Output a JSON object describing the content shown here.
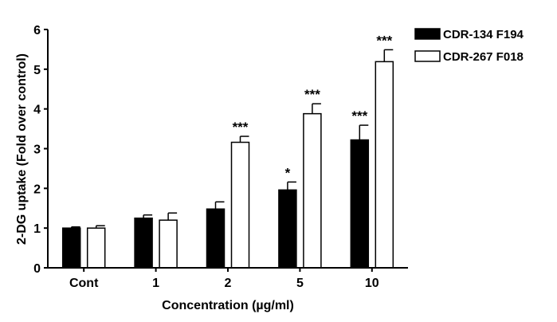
{
  "chart_data": {
    "type": "bar",
    "title": "",
    "xlabel": "Concentration (µg/ml)",
    "ylabel": "2-DG uptake (Fold over control)",
    "ylim": [
      0,
      6
    ],
    "yticks": [
      "0",
      "1",
      "2",
      "3",
      "4",
      "5",
      "6"
    ],
    "categories": [
      "Cont",
      "1",
      "2",
      "5",
      "10"
    ],
    "legend_position": "top-right",
    "series": [
      {
        "name": "CDR-134 F194",
        "fill": "#000000",
        "values": [
          1.0,
          1.25,
          1.48,
          1.96,
          3.22
        ],
        "errors": [
          0.03,
          0.08,
          0.18,
          0.2,
          0.37
        ],
        "significance": [
          "",
          "",
          "",
          "*",
          "***"
        ]
      },
      {
        "name": "CDR-267 F018",
        "fill": "#ffffff",
        "values": [
          1.0,
          1.2,
          3.16,
          3.88,
          5.19
        ],
        "errors": [
          0.06,
          0.18,
          0.15,
          0.25,
          0.3
        ],
        "significance": [
          "",
          "",
          "***",
          "***",
          "***"
        ]
      }
    ]
  }
}
